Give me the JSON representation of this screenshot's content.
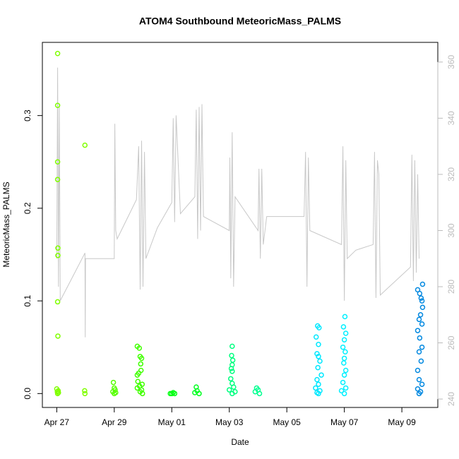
{
  "chart_data": {
    "type": "scatter",
    "title": "ATOM4 Southbound MeteoricMass_PALMS",
    "xlabel": "Date",
    "ylabel": "MeteoricMass_PALMS",
    "xlim": [
      -0.5,
      13.25
    ],
    "ylim": [
      -0.015,
      0.379
    ],
    "y2lim": [
      237,
      367
    ],
    "xticks": [
      {
        "value": 0,
        "label": "Apr 27"
      },
      {
        "value": 2,
        "label": "Apr 29"
      },
      {
        "value": 4,
        "label": "May 01"
      },
      {
        "value": 6,
        "label": "May 03"
      },
      {
        "value": 8,
        "label": "May 05"
      },
      {
        "value": 10,
        "label": "May 07"
      },
      {
        "value": 12,
        "label": "May 09"
      }
    ],
    "yticks": [
      {
        "value": 0,
        "label": "0.0"
      },
      0.1,
      0.2,
      0.3
    ],
    "y2ticks": [
      240,
      260,
      280,
      300,
      320,
      340,
      360
    ],
    "y2color": "#bbbbbb",
    "series": [
      {
        "type": "line",
        "axis": "y2",
        "color": "#c8c8c8",
        "x": [
          0.0,
          0.03,
          0.06,
          0.09,
          0.12,
          0.98,
          0.99,
          1.0,
          2.0,
          2.02,
          2.05,
          2.1,
          2.77,
          2.85,
          2.9,
          2.95,
          3.0,
          3.05,
          3.1,
          3.5,
          4.0,
          4.05,
          4.1,
          4.15,
          4.3,
          4.8,
          4.85,
          4.9,
          4.95,
          5.0,
          5.05,
          5.1,
          6.0,
          6.02,
          6.05,
          6.1,
          6.15,
          6.2,
          7.0,
          7.03,
          7.08,
          7.13,
          7.18,
          7.3,
          8.6,
          8.65,
          8.7,
          8.75,
          8.8,
          9.9,
          9.95,
          10.0,
          10.05,
          10.1,
          10.4,
          11.0,
          11.05,
          11.1,
          11.15,
          11.2,
          11.25,
          12.3,
          12.35,
          12.4,
          12.45,
          12.5,
          12.55,
          12.6
        ],
        "values": [
          290,
          358,
          280,
          345,
          275,
          292,
          262,
          290,
          290,
          338,
          300,
          297,
          311,
          330,
          279,
          332,
          280,
          328,
          290,
          301,
          310,
          340,
          303,
          341,
          306,
          312,
          343,
          297,
          344,
          300,
          345,
          305,
          300,
          326,
          283,
          335,
          280,
          312,
          300,
          322,
          290,
          322,
          295,
          305,
          305,
          328,
          280,
          326,
          300,
          295,
          330,
          275,
          325,
          290,
          293,
          295,
          328,
          276,
          325,
          320,
          277,
          287,
          327,
          282,
          325,
          285,
          320,
          290
        ]
      },
      {
        "color": "#80ff00",
        "x": [
          0.03,
          0.03,
          0.03,
          0.03,
          0.04,
          0.04,
          0.03,
          0.04,
          0.0,
          0.05,
          0.02,
          0.06,
          0.03
        ],
        "values": [
          0.367,
          0.311,
          0.25,
          0.231,
          0.157,
          0.149,
          0.099,
          0.062,
          0.005,
          0.003,
          0.002,
          0.001,
          0.0
        ]
      },
      {
        "color": "#80ff00",
        "x": [
          0.98,
          0.97,
          0.98
        ],
        "values": [
          0.268,
          0.003,
          0.0
        ]
      },
      {
        "color": "#55ff00",
        "x": [
          1.97,
          2.0,
          2.03,
          1.95,
          2.05,
          2.0
        ],
        "values": [
          0.012,
          0.006,
          0.004,
          0.002,
          0.001,
          0.0
        ]
      },
      {
        "color": "#40ff00",
        "x": [
          2.8,
          2.87,
          2.9,
          2.95,
          2.92,
          2.93,
          2.85,
          2.8,
          2.82,
          2.97,
          2.88,
          2.8,
          2.95,
          2.9,
          2.98
        ],
        "values": [
          0.051,
          0.049,
          0.04,
          0.038,
          0.032,
          0.025,
          0.022,
          0.02,
          0.013,
          0.01,
          0.008,
          0.006,
          0.004,
          0.002,
          0.0
        ]
      },
      {
        "color": "#00ff10",
        "x": [
          3.95,
          4.0,
          4.05,
          4.1
        ],
        "values": [
          0.0,
          0.0,
          0.001,
          0.0
        ]
      },
      {
        "color": "#00ff20",
        "x": [
          4.85,
          4.88,
          4.8,
          4.95
        ],
        "values": [
          0.007,
          0.003,
          0.001,
          0.0
        ]
      },
      {
        "color": "#00ff80",
        "x": [
          6.1,
          6.08,
          6.12,
          6.1,
          6.07,
          6.1,
          6.05,
          6.1,
          6.15,
          6.0,
          6.2,
          6.1
        ],
        "values": [
          0.051,
          0.041,
          0.036,
          0.031,
          0.027,
          0.024,
          0.016,
          0.011,
          0.007,
          0.004,
          0.002,
          0.0
        ]
      },
      {
        "color": "#00ff90",
        "x": [
          6.95,
          7.0,
          6.9,
          7.05
        ],
        "values": [
          0.006,
          0.004,
          0.002,
          0.0
        ]
      },
      {
        "color": "#00e8ff",
        "x": [
          9.07,
          9.12,
          9.02,
          9.1,
          9.05,
          9.1,
          9.15,
          9.08,
          9.2,
          9.05,
          9.1,
          9.0,
          9.15,
          9.05,
          9.1
        ],
        "values": [
          0.073,
          0.071,
          0.061,
          0.053,
          0.043,
          0.04,
          0.035,
          0.028,
          0.02,
          0.015,
          0.01,
          0.006,
          0.003,
          0.001,
          0.0
        ]
      },
      {
        "color": "#00f0ff",
        "x": [
          10.02,
          9.97,
          10.05,
          10.0,
          9.95,
          10.03,
          10.0,
          9.98,
          10.05,
          10.0,
          9.95,
          10.05,
          9.9,
          10.0
        ],
        "values": [
          0.083,
          0.072,
          0.065,
          0.058,
          0.05,
          0.045,
          0.038,
          0.033,
          0.025,
          0.02,
          0.012,
          0.006,
          0.003,
          0.0
        ]
      },
      {
        "color": "#0088e0",
        "x": [
          12.72,
          12.55,
          12.62,
          12.67,
          12.7,
          12.72,
          12.65,
          12.6,
          12.7,
          12.55,
          12.62,
          12.7,
          12.6,
          12.67,
          12.55,
          12.6,
          12.7,
          12.55,
          12.65,
          12.6
        ],
        "values": [
          0.118,
          0.112,
          0.108,
          0.103,
          0.1,
          0.093,
          0.085,
          0.08,
          0.075,
          0.068,
          0.06,
          0.05,
          0.045,
          0.035,
          0.025,
          0.015,
          0.01,
          0.005,
          0.002,
          0.0
        ]
      }
    ]
  }
}
